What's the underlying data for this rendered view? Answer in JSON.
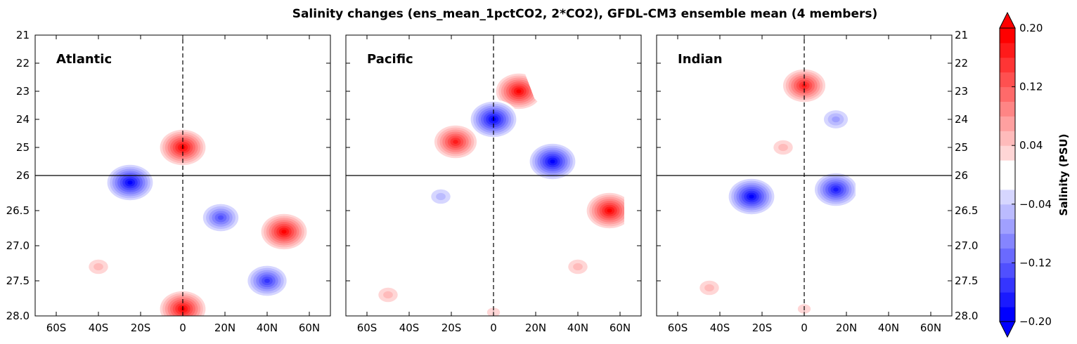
{
  "chart_data": {
    "type": "heatmap",
    "title": "Salinity changes (ens_mean_1pctCO2, 2*CO2), GFDL-CM3 ensemble mean (4 members)",
    "x_tick_labels": [
      "60S",
      "40S",
      "20S",
      "0",
      "20N",
      "40N",
      "60N"
    ],
    "x_ticks": [
      -60,
      -40,
      -20,
      0,
      20,
      40,
      60
    ],
    "xlim": [
      -70,
      70
    ],
    "y_tick_labels": [
      "21",
      "22",
      "23",
      "24",
      "25",
      "26",
      "26.5",
      "27.0",
      "27.5",
      "28.0"
    ],
    "y_upper_range": [
      21,
      26
    ],
    "y_lower_range": [
      26,
      28
    ],
    "reference_density": 26,
    "reference_latitude": 0,
    "colorbar": {
      "label": "Salinity (PSU)",
      "range": [
        -0.2,
        0.2
      ],
      "tick_labels": [
        "0.20",
        "0.12",
        "0.04",
        "−0.04",
        "−0.12",
        "−0.20"
      ],
      "tick_values": [
        0.2,
        0.12,
        0.04,
        -0.04,
        -0.12,
        -0.2
      ],
      "levels": [
        -0.2,
        -0.18,
        -0.16,
        -0.14,
        -0.12,
        -0.1,
        -0.08,
        -0.06,
        -0.04,
        -0.02,
        0.0,
        0.02,
        0.04,
        0.06,
        0.08,
        0.1,
        0.12,
        0.14,
        0.16,
        0.18,
        0.2
      ],
      "extend": "both",
      "colors": [
        "#0000ff",
        "#1a1aff",
        "#3535ff",
        "#5050ff",
        "#6a6aff",
        "#8585ff",
        "#a0a0ff",
        "#bbbbff",
        "#d6d6ff",
        "#ffffff",
        "#ffffff",
        "#ffd6d6",
        "#ffbbbb",
        "#ffa0a0",
        "#ff8585",
        "#ff6a6a",
        "#ff5050",
        "#ff3535",
        "#ff1a1a",
        "#ff0000"
      ]
    },
    "panels": [
      {
        "name": "Atlantic",
        "features": [
          {
            "lat": 0,
            "sig": 25.0,
            "val": 0.2
          },
          {
            "lat": -25,
            "sig": 26.1,
            "val": -0.2
          },
          {
            "lat": 18,
            "sig": 26.6,
            "val": -0.14
          },
          {
            "lat": 48,
            "sig": 26.8,
            "val": 0.2
          },
          {
            "lat": -40,
            "sig": 27.3,
            "val": 0.06
          },
          {
            "lat": 40,
            "sig": 27.5,
            "val": -0.16
          },
          {
            "lat": 0,
            "sig": 27.9,
            "val": 0.2
          }
        ]
      },
      {
        "name": "Pacific",
        "features": [
          {
            "lat": 12,
            "sig": 23.0,
            "val": 0.2
          },
          {
            "lat": 0,
            "sig": 24.0,
            "val": -0.2
          },
          {
            "lat": 28,
            "sig": 25.5,
            "val": -0.2
          },
          {
            "lat": 55,
            "sig": 26.5,
            "val": 0.2
          },
          {
            "lat": -25,
            "sig": 26.3,
            "val": -0.06
          },
          {
            "lat": -18,
            "sig": 24.8,
            "val": 0.18
          },
          {
            "lat": 40,
            "sig": 27.3,
            "val": 0.06
          },
          {
            "lat": -50,
            "sig": 27.7,
            "val": 0.06
          },
          {
            "lat": 0,
            "sig": 27.95,
            "val": 0.04
          }
        ]
      },
      {
        "name": "Indian",
        "features": [
          {
            "lat": 0,
            "sig": 22.8,
            "val": 0.18
          },
          {
            "lat": -25,
            "sig": 26.3,
            "val": -0.2
          },
          {
            "lat": 15,
            "sig": 26.2,
            "val": -0.18
          },
          {
            "lat": -10,
            "sig": 25.0,
            "val": 0.06
          },
          {
            "lat": 15,
            "sig": 24.0,
            "val": -0.08
          },
          {
            "lat": -45,
            "sig": 27.6,
            "val": 0.06
          },
          {
            "lat": 0,
            "sig": 27.9,
            "val": 0.04
          }
        ]
      }
    ]
  }
}
